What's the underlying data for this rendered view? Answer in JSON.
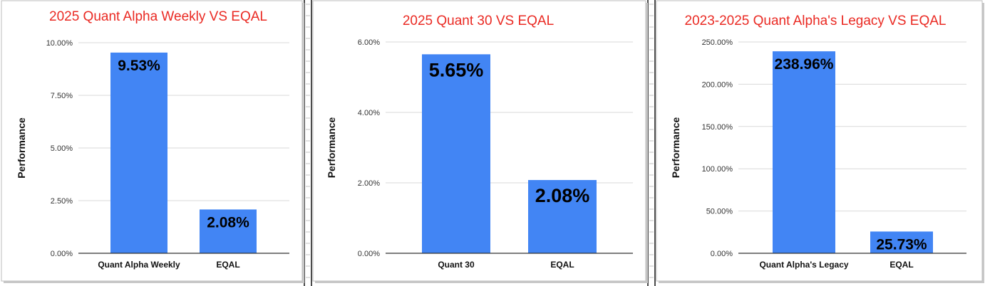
{
  "colors": {
    "bar": "#4285f4",
    "title": "#ea2a23",
    "grid": "#d9d9d9",
    "axis": "#333333",
    "divider": "#111111",
    "background": "#ffffff"
  },
  "chart_data": [
    {
      "type": "bar",
      "title": "2025 Quant Alpha Weekly VS EQAL",
      "xlabel": "",
      "ylabel": "Performance",
      "ylim": [
        0,
        10
      ],
      "yticks": [
        "0.00%",
        "2.50%",
        "5.00%",
        "7.50%",
        "10.00%"
      ],
      "categories": [
        "Quant Alpha Weekly",
        "EQAL"
      ],
      "values": [
        9.53,
        2.08
      ],
      "data_labels": [
        "9.53%",
        "2.08%"
      ],
      "grid": true,
      "legend": "none"
    },
    {
      "type": "bar",
      "title": "2025 Quant 30 VS EQAL",
      "xlabel": "",
      "ylabel": "Performance",
      "ylim": [
        0,
        6
      ],
      "yticks": [
        "0.00%",
        "2.00%",
        "4.00%",
        "6.00%"
      ],
      "categories": [
        "Quant 30",
        "EQAL"
      ],
      "values": [
        5.65,
        2.08
      ],
      "data_labels": [
        "5.65%",
        "2.08%"
      ],
      "grid": true,
      "legend": "none"
    },
    {
      "type": "bar",
      "title": "2023-2025 Quant Alpha's Legacy VS EQAL",
      "xlabel": "",
      "ylabel": "Performance",
      "ylim": [
        0,
        250
      ],
      "yticks": [
        "0.00%",
        "50.00%",
        "100.00%",
        "150.00%",
        "200.00%",
        "250.00%"
      ],
      "categories": [
        "Quant Alpha's Legacy",
        "EQAL"
      ],
      "values": [
        238.96,
        25.73
      ],
      "data_labels": [
        "238.96%",
        "25.73%"
      ],
      "grid": true,
      "legend": "none"
    }
  ]
}
